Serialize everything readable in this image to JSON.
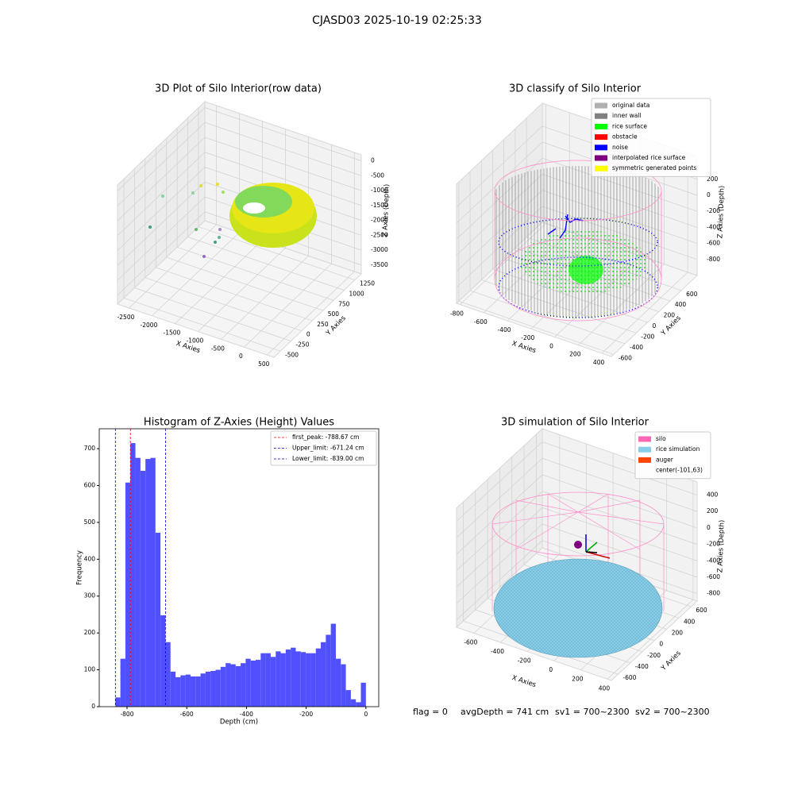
{
  "title": "CJASD03 2025-10-19 02:25:33",
  "footer": [
    "flag = 0",
    "avgDepth = 741 cm",
    "sv1 = 700~2300",
    "sv2 = 700~2300"
  ],
  "chart_data": [
    {
      "type": "scatter3d",
      "title": "3D Plot of Silo Interior(row data)",
      "xlabel": "X Axies",
      "ylabel": "Y Axies",
      "zlabel": "Z Axies (Depth)",
      "xlim": [
        -2750,
        650
      ],
      "ylim": [
        -650,
        1400
      ],
      "zlim": [
        -3800,
        200
      ],
      "xticks": [
        -2500,
        -2000,
        -1500,
        -1000,
        -500,
        0,
        500
      ],
      "yticks": [
        -500,
        -250,
        0,
        250,
        500,
        750,
        1000,
        1250
      ],
      "zticks": [
        -3500,
        -3000,
        -2500,
        -2000,
        -1500,
        -1000,
        -500,
        0
      ]
    },
    {
      "type": "scatter3d",
      "title": "3D classify of Silo Interior",
      "xlabel": "X Axies",
      "ylabel": "Y Axies",
      "zlabel": "Z Axies (Depth)",
      "xlim": [
        -830,
        480
      ],
      "ylim": [
        -640,
        880
      ],
      "zlim": [
        -1000,
        485
      ],
      "xticks": [
        -800,
        -600,
        -400,
        -200,
        0,
        200,
        400
      ],
      "yticks": [
        -600,
        -400,
        -200,
        0,
        200,
        400,
        600
      ],
      "zticks": [
        -800,
        -600,
        -400,
        -200,
        0,
        200
      ],
      "legend": [
        {
          "name": "original data",
          "color": "#b0b0b0"
        },
        {
          "name": "inner wall",
          "color": "#808080"
        },
        {
          "name": "rice surface",
          "color": "#00ff00"
        },
        {
          "name": "obstacle",
          "color": "#ff0000"
        },
        {
          "name": "noise",
          "color": "#0000ff"
        },
        {
          "name": "interpolated rice surface",
          "color": "#800080"
        },
        {
          "name": "symmetric generated points",
          "color": "#ffff00"
        }
      ]
    },
    {
      "type": "histogram",
      "title": "Histogram of Z-Axies (Height) Values",
      "xlabel": "Depth (cm)",
      "ylabel": "Frequency",
      "color": "#5050ff",
      "bins": [
        -839,
        -822.22,
        -805.44,
        -788.66,
        -771.88,
        -755.1,
        -738.32,
        -721.54,
        -704.76,
        -687.98,
        -671.2,
        -654.42,
        -637.64,
        -620.86,
        -604.08,
        -587.3,
        -570.52,
        -553.74,
        -536.96,
        -520.18,
        -503.4,
        -486.62,
        -469.84,
        -453.06,
        -436.28,
        -419.5,
        -402.72,
        -385.94,
        -369.16,
        -352.38,
        -335.6,
        -318.82,
        -302.04,
        -285.26,
        -268.48,
        -251.7,
        -234.92,
        -218.14,
        -201.36,
        -184.58,
        -167.8,
        -151.02,
        -134.24,
        -117.46,
        -100.68,
        -83.9,
        -67.12,
        -50.34,
        -33.56,
        -16.78,
        0
      ],
      "counts": [
        25,
        130,
        608,
        715,
        675,
        640,
        672,
        675,
        472,
        248,
        175,
        95,
        80,
        85,
        87,
        82,
        82,
        90,
        95,
        97,
        100,
        108,
        118,
        115,
        110,
        118,
        130,
        125,
        127,
        145,
        145,
        135,
        150,
        145,
        155,
        160,
        150,
        148,
        145,
        145,
        158,
        175,
        195,
        225,
        130,
        115,
        45,
        20,
        12,
        65
      ],
      "xlim": [
        -893,
        43
      ],
      "ylim": [
        0,
        754
      ],
      "xticks": [
        -800,
        -600,
        -400,
        -200,
        0
      ],
      "yticks": [
        0,
        100,
        200,
        300,
        400,
        500,
        600,
        700
      ],
      "vlines": [
        {
          "name": "first_peak: -788.67 cm",
          "value": -788.67,
          "color": "#ff0000"
        },
        {
          "name": "Upper_limit: -671.24 cm",
          "value": -671.24,
          "color": "#0000cc"
        },
        {
          "name": "Lower_limit: -839.00 cm",
          "value": -839.0,
          "color": "#0000cc"
        }
      ]
    },
    {
      "type": "scatter3d",
      "title": "3D simulation of Silo Interior",
      "xlabel": "X Axies",
      "ylabel": "Y Axies",
      "zlabel": "Z Axies (Depth)",
      "xlim": [
        -730,
        430
      ],
      "ylim": [
        -710,
        700
      ],
      "zlim": [
        -890,
        560
      ],
      "xticks": [
        -600,
        -400,
        -200,
        0,
        200,
        400
      ],
      "yticks": [
        -600,
        -400,
        -200,
        0,
        200,
        400,
        600
      ],
      "zticks": [
        -800,
        -600,
        -400,
        -200,
        0,
        200,
        400
      ],
      "legend": [
        {
          "name": "silo",
          "color": "#ff69b4"
        },
        {
          "name": "rice simulation",
          "color": "#87ceeb"
        },
        {
          "name": "auger",
          "color": "#ff4500"
        },
        {
          "name": "center(-101,63)"
        }
      ]
    }
  ]
}
